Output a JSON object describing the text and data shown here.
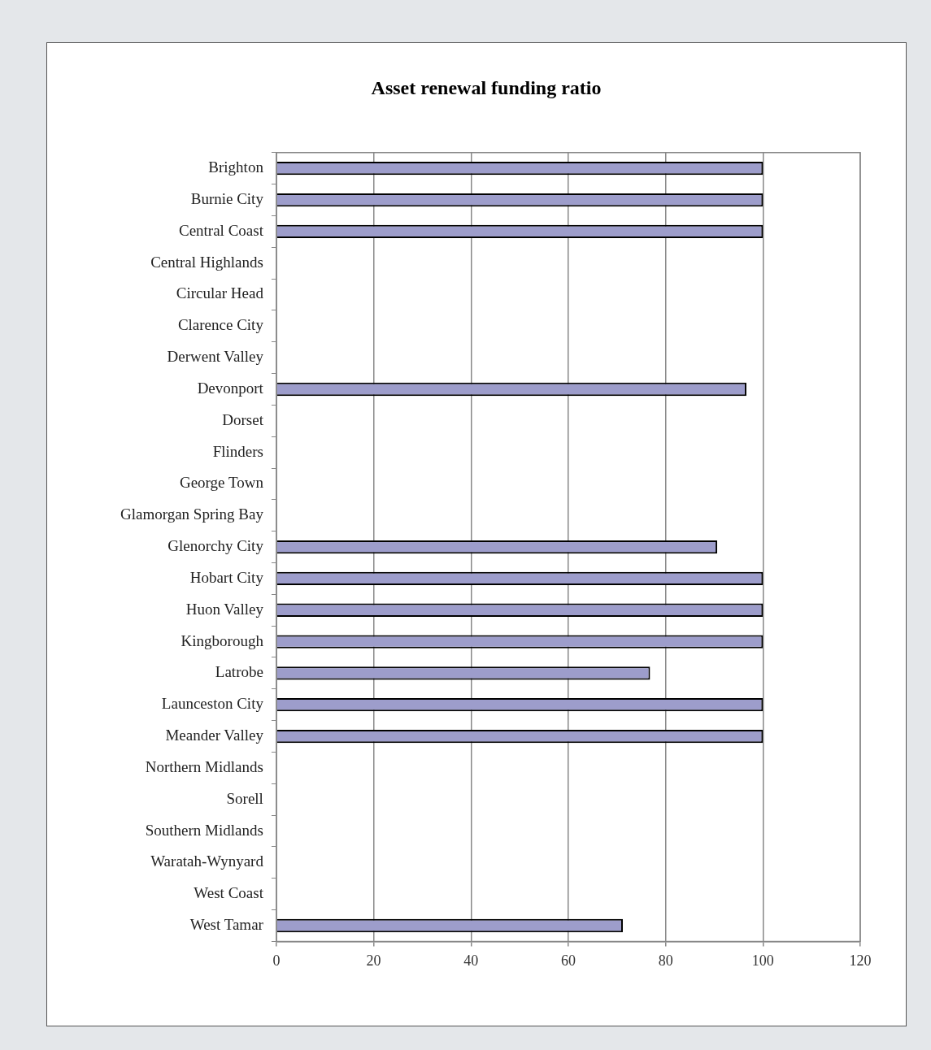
{
  "chart_data": {
    "type": "bar",
    "orientation": "horizontal",
    "title": "Asset renewal funding ratio",
    "categories": [
      "Brighton",
      "Burnie City",
      "Central Coast",
      "Central Highlands",
      "Circular Head",
      "Clarence City",
      "Derwent Valley",
      "Devonport",
      "Dorset",
      "Flinders",
      "George Town",
      "Glamorgan Spring Bay",
      "Glenorchy City",
      "Hobart City",
      "Huon Valley",
      "Kingborough",
      "Latrobe",
      "Launceston City",
      "Meander Valley",
      "Northern Midlands",
      "Sorell",
      "Southern Midlands",
      "Waratah-Wynyard",
      "West Coast",
      "West Tamar"
    ],
    "values": [
      100,
      100,
      100,
      null,
      null,
      null,
      null,
      96.6,
      null,
      null,
      null,
      null,
      90.6,
      100,
      100,
      100,
      76.8,
      100,
      100,
      null,
      null,
      null,
      null,
      null,
      71.2
    ],
    "color": "#9d9dcb",
    "xlim": [
      0,
      120
    ],
    "xticks": [
      0,
      20,
      40,
      60,
      80,
      100,
      120
    ],
    "grid": "x",
    "legend": false
  }
}
